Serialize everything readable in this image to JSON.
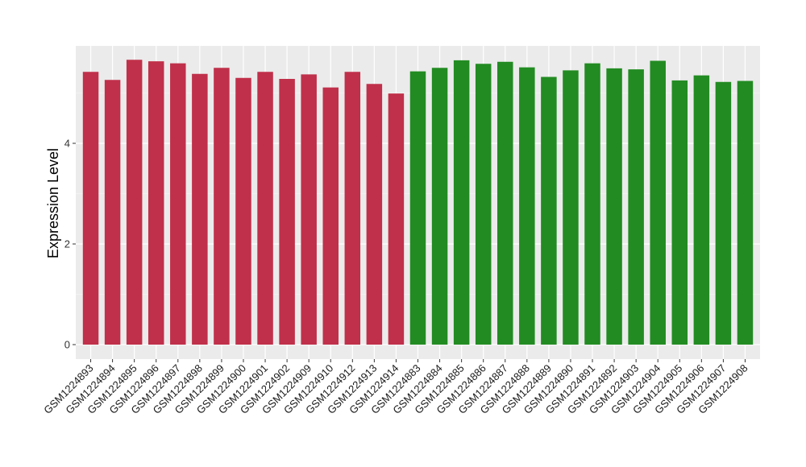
{
  "chart_data": {
    "type": "bar",
    "title": "",
    "xlabel": "",
    "ylabel": "Expression Level",
    "ylim": [
      0,
      6.1
    ],
    "yticks": [
      0,
      2,
      4
    ],
    "grid": true,
    "legend": "none",
    "colors": {
      "panel": "#ebebeb",
      "grid_major": "#ffffff",
      "group_a": "#c0304a",
      "group_b": "#228b22"
    },
    "categories": [
      "GSM1224893",
      "GSM1224894",
      "GSM1224895",
      "GSM1224896",
      "GSM1224897",
      "GSM1224898",
      "GSM1224899",
      "GSM1224900",
      "GSM1224901",
      "GSM1224902",
      "GSM1224909",
      "GSM1224910",
      "GSM1224912",
      "GSM1224913",
      "GSM1224914",
      "GSM1224883",
      "GSM1224884",
      "GSM1224885",
      "GSM1224886",
      "GSM1224887",
      "GSM1224888",
      "GSM1224889",
      "GSM1224890",
      "GSM1224891",
      "GSM1224892",
      "GSM1224903",
      "GSM1224904",
      "GSM1224905",
      "GSM1224906",
      "GSM1224907",
      "GSM1224908"
    ],
    "values": [
      5.42,
      5.26,
      5.66,
      5.63,
      5.59,
      5.38,
      5.5,
      5.3,
      5.42,
      5.28,
      5.37,
      5.11,
      5.42,
      5.18,
      4.99,
      5.43,
      5.5,
      5.65,
      5.58,
      5.62,
      5.51,
      5.32,
      5.45,
      5.59,
      5.49,
      5.47,
      5.64,
      5.25,
      5.35,
      5.22,
      5.24
    ],
    "groups": [
      "a",
      "a",
      "a",
      "a",
      "a",
      "a",
      "a",
      "a",
      "a",
      "a",
      "a",
      "a",
      "a",
      "a",
      "a",
      "b",
      "b",
      "b",
      "b",
      "b",
      "b",
      "b",
      "b",
      "b",
      "b",
      "b",
      "b",
      "b",
      "b",
      "b",
      "b"
    ]
  }
}
